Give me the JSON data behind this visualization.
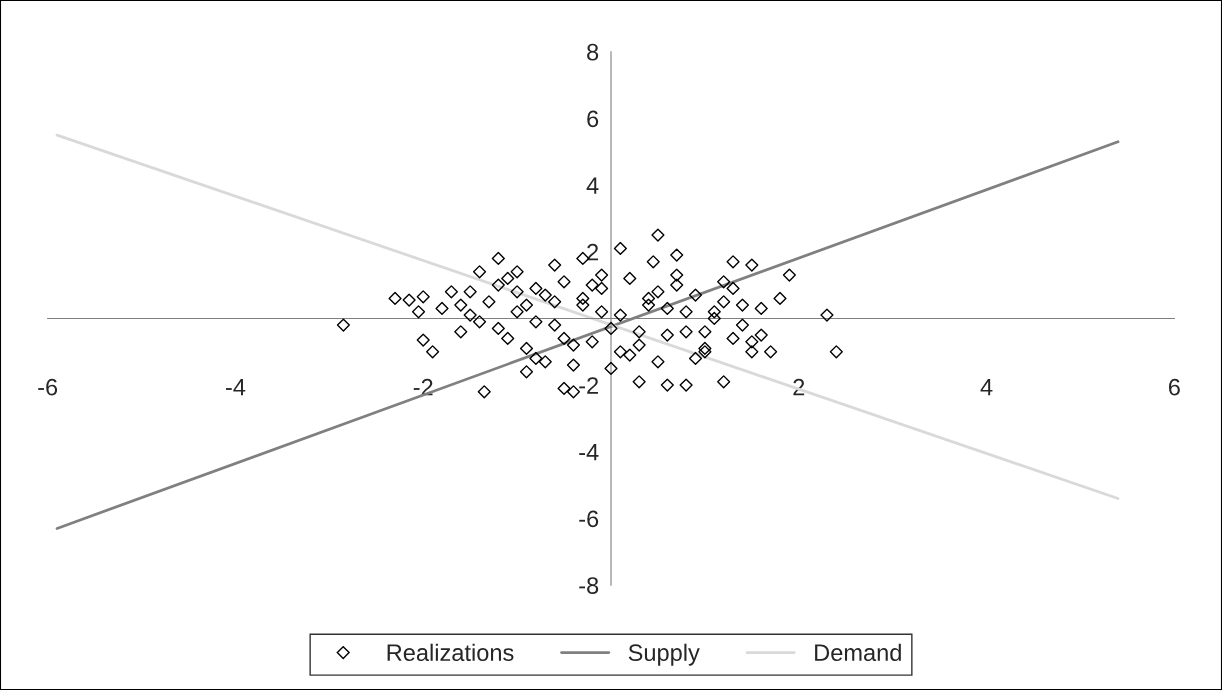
{
  "chart_data": {
    "type": "scatter",
    "xlim": [
      -6,
      6
    ],
    "ylim": [
      -8,
      8
    ],
    "xticks": [
      -6,
      -4,
      -2,
      {
        "value": 0,
        "label": null
      },
      2,
      4,
      6
    ],
    "yticks": [
      -8,
      -6,
      -4,
      -2,
      {
        "value": 0,
        "label": null
      },
      2,
      4,
      6,
      8
    ],
    "grid": false,
    "legend": "bottom",
    "marker": "diamond",
    "series": [
      {
        "name": "Realizations",
        "color": "#000000",
        "x": [
          -2.85,
          -2.3,
          -2.15,
          -2.0,
          -2.0,
          -2.05,
          -1.9,
          -1.7,
          -1.6,
          -1.5,
          -1.4,
          -1.35,
          -1.4,
          -1.2,
          -1.2,
          -1.0,
          -0.9,
          -0.8,
          -0.6,
          -0.5,
          -0.4,
          -0.3,
          -0.1,
          0.1,
          0.5,
          0.45,
          0.7,
          0.8,
          1.0,
          1.2,
          1.3,
          1.5,
          1.6,
          1.8,
          1.9,
          2.3,
          2.4,
          1.5,
          1.7,
          0.3,
          0.6,
          -0.8,
          -1.8,
          -1.6,
          -1.3,
          -1.1,
          -1.0,
          -0.9,
          -0.7,
          -0.6,
          -0.5,
          -0.4,
          -0.3,
          -0.2,
          -0.1,
          0.0,
          0.1,
          0.2,
          0.3,
          0.4,
          0.5,
          0.6,
          0.7,
          0.8,
          0.9,
          1.0,
          1.1,
          1.2,
          1.3,
          1.4,
          -1.2,
          -1.0,
          -0.8,
          -0.6,
          -0.4,
          -0.2,
          0.0,
          0.2,
          0.4,
          0.6,
          0.8,
          1.0,
          1.2,
          1.4,
          -1.5,
          -1.1,
          -0.7,
          -0.3,
          0.1,
          0.5,
          0.9,
          1.3,
          1.6,
          -0.9,
          -0.5,
          -0.1,
          0.3,
          0.7,
          1.1,
          1.5
        ],
        "values": [
          -0.2,
          0.6,
          0.55,
          0.65,
          -0.65,
          0.2,
          -1.0,
          0.8,
          0.4,
          0.8,
          -0.1,
          -2.2,
          1.4,
          1.8,
          1.0,
          1.4,
          0.4,
          -1.2,
          1.6,
          -2.1,
          -2.2,
          1.8,
          1.3,
          2.1,
          2.5,
          1.7,
          1.9,
          -2.0,
          -1.0,
          -1.9,
          1.7,
          1.6,
          -0.5,
          0.6,
          1.3,
          0.1,
          -1.0,
          -1.0,
          -1.0,
          -1.9,
          -2.0,
          0.9,
          0.3,
          -0.4,
          0.5,
          -0.6,
          0.2,
          -0.9,
          0.7,
          -0.2,
          1.1,
          -1.4,
          0.4,
          -0.7,
          0.9,
          -1.5,
          0.1,
          1.2,
          -0.8,
          0.6,
          -1.3,
          0.3,
          1.0,
          -0.4,
          0.7,
          -0.9,
          0.2,
          1.1,
          -0.6,
          0.4,
          -0.3,
          0.8,
          -0.1,
          0.5,
          -0.8,
          1.0,
          -0.3,
          -1.1,
          0.4,
          -0.5,
          0.2,
          -0.4,
          0.5,
          -0.2,
          0.1,
          1.2,
          -1.3,
          0.6,
          -1.0,
          0.8,
          -1.2,
          0.9,
          0.3,
          -1.6,
          -0.6,
          0.2,
          -0.4,
          1.3,
          0.0,
          -0.7
        ]
      },
      {
        "name": "Supply",
        "type": "line",
        "color": "#808080",
        "marker": "none",
        "x": [
          -5.9,
          5.4
        ],
        "values": [
          -6.3,
          5.3
        ]
      },
      {
        "name": "Demand",
        "type": "line",
        "color": "#d9d9d9",
        "marker": "none",
        "x": [
          -5.9,
          5.4
        ],
        "values": [
          5.5,
          -5.4
        ]
      }
    ]
  }
}
